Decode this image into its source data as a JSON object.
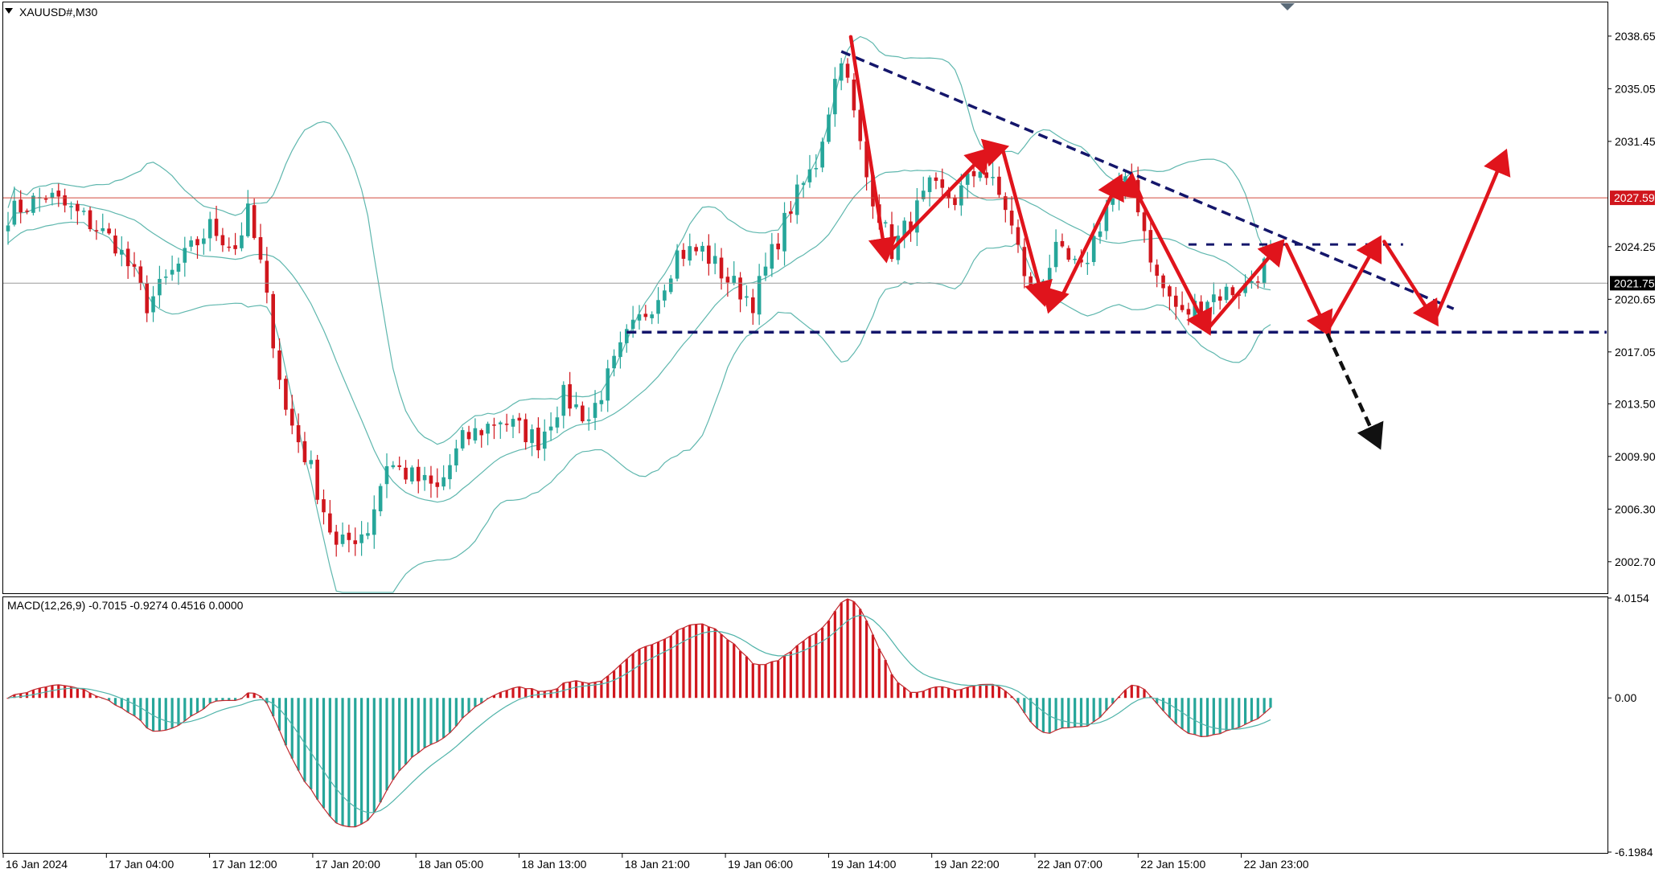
{
  "window": {
    "title": "XAUUSD#,M30",
    "macd_label": "MACD(12,26,9) -0.7015 -0.9274 0.4516 0.0000"
  },
  "colors": {
    "bull": "#26a69a",
    "bear": "#d0161d",
    "band": "#5fb7ae",
    "macd_hist_pos": "#d0161d",
    "macd_hist_neg": "#26a69a",
    "macd_line": "#c0272d",
    "signal_line": "#4fb3a9",
    "trendline": "#14166b",
    "arrow_red": "#e0141c",
    "arrow_black": "#111111",
    "bid_line": "#d24a3c",
    "ask_line": "#9a9a9a",
    "bid_tag_bg": "#d0161d",
    "ask_tag_bg": "#000000"
  },
  "chart_data": {
    "type": "candlestick",
    "symbol": "XAUUSD#",
    "timeframe": "M30",
    "price_axis": {
      "ylim": [
        2000.6,
        2040.9
      ],
      "ticks": [
        "2038.65",
        "2035.05",
        "2031.45",
        "2024.25",
        "2020.65",
        "2017.05",
        "2013.50",
        "2009.90",
        "2006.30",
        "2002.70"
      ]
    },
    "price_tags": {
      "bid": "2027.59",
      "current": "2021.75"
    },
    "time_axis": {
      "labels": [
        "16 Jan 2024",
        "17 Jan 04:00",
        "17 Jan 12:00",
        "17 Jan 20:00",
        "18 Jan 05:00",
        "18 Jan 13:00",
        "18 Jan 21:00",
        "19 Jan 06:00",
        "19 Jan 14:00",
        "19 Jan 22:00",
        "22 Jan 07:00",
        "22 Jan 15:00",
        "22 Jan 23:00"
      ]
    },
    "price_path": [
      [
        0,
        2026.5
      ],
      [
        6,
        2027.8
      ],
      [
        12,
        2026.2
      ],
      [
        17,
        2024.5
      ],
      [
        20,
        2022.2
      ],
      [
        22,
        2020.3
      ],
      [
        28,
        2023.5
      ],
      [
        32,
        2025.6
      ],
      [
        36,
        2024.2
      ],
      [
        38,
        2026.5
      ],
      [
        40,
        2023.0
      ],
      [
        44,
        2013.0
      ],
      [
        48,
        2009.0
      ],
      [
        52,
        2003.6
      ],
      [
        57,
        2005.0
      ],
      [
        60,
        2009.5
      ],
      [
        64,
        2008.5
      ],
      [
        68,
        2007.6
      ],
      [
        72,
        2011.0
      ],
      [
        78,
        2012.5
      ],
      [
        84,
        2011.0
      ],
      [
        88,
        2014.0
      ],
      [
        92,
        2012.5
      ],
      [
        98,
        2018.0
      ],
      [
        103,
        2021.0
      ],
      [
        106,
        2023.8
      ],
      [
        110,
        2024.0
      ],
      [
        114,
        2022.0
      ],
      [
        118,
        2020.5
      ],
      [
        124,
        2027.0
      ],
      [
        128,
        2030.0
      ],
      [
        132,
        2037.5
      ],
      [
        136,
        2029.0
      ],
      [
        140,
        2024.0
      ],
      [
        146,
        2028.2
      ],
      [
        150,
        2027.5
      ],
      [
        154,
        2029.8
      ],
      [
        158,
        2027.0
      ],
      [
        162,
        2021.0
      ],
      [
        166,
        2023.8
      ],
      [
        170,
        2022.5
      ],
      [
        174,
        2027.0
      ],
      [
        178,
        2028.8
      ],
      [
        182,
        2022.0
      ],
      [
        186,
        2019.5
      ],
      [
        190,
        2020.8
      ],
      [
        196,
        2021.5
      ],
      [
        200,
        2023.5
      ]
    ],
    "bollinger": {
      "period": 20,
      "deviations": 2
    },
    "macd": {
      "params": "12,26,9",
      "values": [
        -0.7015,
        -0.9274,
        0.4516,
        0.0
      ],
      "ylim": [
        -6.1984,
        4.0154
      ],
      "ticks": [
        "4.0154",
        "0.00",
        "-6.1984"
      ]
    },
    "annotations": {
      "triangle_top_trendline": [
        [
          132,
          2037.6
        ],
        [
          229,
          2020.0
        ]
      ],
      "support_line": 2018.4,
      "zigzag_red": [
        [
          133.5,
          2038.6
        ],
        [
          139,
          2023.6
        ],
        [
          155,
          2030.7
        ],
        [
          157.5,
          2031.0
        ],
        [
          164,
          2020.6
        ],
        [
          167,
          2020.9
        ],
        [
          176,
          2028.8
        ],
        [
          179,
          2027.8
        ],
        [
          190,
          2018.6
        ],
        [
          201.5,
          2024.4
        ],
        [
          202.5,
          2024.4
        ],
        [
          209,
          2018.5
        ],
        [
          217,
          2024.6
        ],
        [
          218,
          2024.6
        ],
        [
          226,
          2019.2
        ],
        [
          237,
          2030.5
        ]
      ],
      "black_arrow": [
        [
          209,
          2018.3
        ],
        [
          217,
          2010.8
        ]
      ],
      "resistance_dash_y": 2024.4,
      "resistance_dash_x": [
        187,
        221
      ]
    }
  }
}
